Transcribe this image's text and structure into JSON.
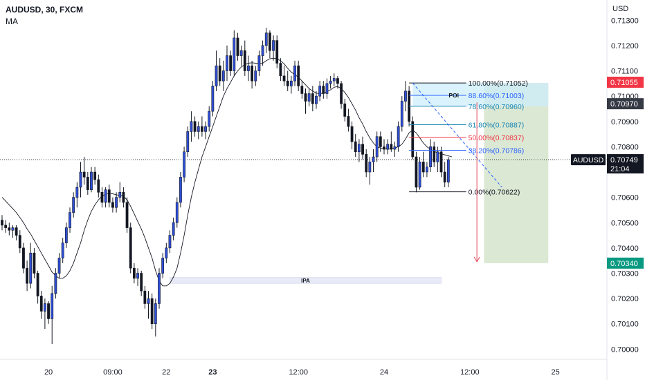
{
  "header": {
    "symbol_line": "AUDUSD, 30, FXCM",
    "indicator": "MA"
  },
  "colors": {
    "bull": "#2f4fd8",
    "bear": "#131722",
    "ma_line": "#131722",
    "price_label_red": "#f23645",
    "price_label_green": "#089981",
    "price_label_dark": "#363a45",
    "poi_fill": "#cdeefa",
    "ipa_fill": "#e8ebf7",
    "target_fill": "#dbe8d3",
    "fib_red": "#f23645",
    "fib_blue": "#2962ff",
    "arrow_red": "#e04a5b"
  },
  "chart_data": {
    "type": "candlestick",
    "symbol": "AUDUSD",
    "timeframe": "30",
    "ylim": [
      0.6996,
      0.7138
    ],
    "y_axis_unit": "USD",
    "y_ticks": [
      "0.71300",
      "0.71200",
      "0.71100",
      "0.71000",
      "0.70900",
      "0.70800",
      "0.70600",
      "0.70500",
      "0.70400",
      "0.70300",
      "0.70200",
      "0.70100",
      "0.70000"
    ],
    "x_ticks": [
      {
        "label": "20",
        "bar": 13,
        "bold": false
      },
      {
        "label": "09:00",
        "bar": 31,
        "bold": false
      },
      {
        "label": "22",
        "bar": 46,
        "bold": false
      },
      {
        "label": "23",
        "bar": 59,
        "bold": true
      },
      {
        "label": "12:00",
        "bar": 83,
        "bold": false
      },
      {
        "label": "24",
        "bar": 107,
        "bold": false
      },
      {
        "label": "12:00",
        "bar": 131,
        "bold": false
      },
      {
        "label": "25",
        "bar": 155,
        "bold": false
      }
    ],
    "bar_count_total": 170,
    "candles": [
      {
        "o": 0.7051,
        "h": 0.7053,
        "l": 0.7047,
        "c": 0.7049
      },
      {
        "o": 0.7049,
        "h": 0.7051,
        "l": 0.7046,
        "c": 0.7048
      },
      {
        "o": 0.7048,
        "h": 0.705,
        "l": 0.7045,
        "c": 0.7047
      },
      {
        "o": 0.7047,
        "h": 0.7049,
        "l": 0.7044,
        "c": 0.7048
      },
      {
        "o": 0.7048,
        "h": 0.7049,
        "l": 0.7043,
        "c": 0.7045
      },
      {
        "o": 0.7045,
        "h": 0.7047,
        "l": 0.7038,
        "c": 0.704
      },
      {
        "o": 0.704,
        "h": 0.7042,
        "l": 0.703,
        "c": 0.7032
      },
      {
        "o": 0.7032,
        "h": 0.7035,
        "l": 0.7023,
        "c": 0.7026
      },
      {
        "o": 0.7026,
        "h": 0.7042,
        "l": 0.7024,
        "c": 0.7038
      },
      {
        "o": 0.7038,
        "h": 0.704,
        "l": 0.7028,
        "c": 0.703
      },
      {
        "o": 0.703,
        "h": 0.7031,
        "l": 0.7018,
        "c": 0.7021
      },
      {
        "o": 0.7021,
        "h": 0.7023,
        "l": 0.7012,
        "c": 0.7015
      },
      {
        "o": 0.7015,
        "h": 0.702,
        "l": 0.7008,
        "c": 0.7018
      },
      {
        "o": 0.7018,
        "h": 0.7019,
        "l": 0.701,
        "c": 0.7012
      },
      {
        "o": 0.7012,
        "h": 0.7025,
        "l": 0.7002,
        "c": 0.7022
      },
      {
        "o": 0.7022,
        "h": 0.7032,
        "l": 0.702,
        "c": 0.703
      },
      {
        "o": 0.703,
        "h": 0.7038,
        "l": 0.7028,
        "c": 0.7036
      },
      {
        "o": 0.7036,
        "h": 0.7044,
        "l": 0.7034,
        "c": 0.7042
      },
      {
        "o": 0.7042,
        "h": 0.705,
        "l": 0.704,
        "c": 0.7048
      },
      {
        "o": 0.7048,
        "h": 0.7056,
        "l": 0.7046,
        "c": 0.7054
      },
      {
        "o": 0.7054,
        "h": 0.7062,
        "l": 0.7052,
        "c": 0.706
      },
      {
        "o": 0.706,
        "h": 0.7066,
        "l": 0.7056,
        "c": 0.7064
      },
      {
        "o": 0.7064,
        "h": 0.7074,
        "l": 0.706,
        "c": 0.707
      },
      {
        "o": 0.707,
        "h": 0.7076,
        "l": 0.7065,
        "c": 0.7068
      },
      {
        "o": 0.7068,
        "h": 0.707,
        "l": 0.7061,
        "c": 0.7063
      },
      {
        "o": 0.7063,
        "h": 0.7072,
        "l": 0.7062,
        "c": 0.707
      },
      {
        "o": 0.707,
        "h": 0.7072,
        "l": 0.7065,
        "c": 0.7067
      },
      {
        "o": 0.7067,
        "h": 0.7069,
        "l": 0.706,
        "c": 0.7062
      },
      {
        "o": 0.7062,
        "h": 0.7064,
        "l": 0.7056,
        "c": 0.7058
      },
      {
        "o": 0.7058,
        "h": 0.7064,
        "l": 0.7056,
        "c": 0.7063
      },
      {
        "o": 0.7063,
        "h": 0.7065,
        "l": 0.7056,
        "c": 0.7058
      },
      {
        "o": 0.7058,
        "h": 0.706,
        "l": 0.7054,
        "c": 0.7056
      },
      {
        "o": 0.7056,
        "h": 0.7062,
        "l": 0.7054,
        "c": 0.706
      },
      {
        "o": 0.706,
        "h": 0.7066,
        "l": 0.7058,
        "c": 0.7062
      },
      {
        "o": 0.7062,
        "h": 0.7064,
        "l": 0.7056,
        "c": 0.7058
      },
      {
        "o": 0.7058,
        "h": 0.706,
        "l": 0.7046,
        "c": 0.7048
      },
      {
        "o": 0.7048,
        "h": 0.705,
        "l": 0.703,
        "c": 0.7032
      },
      {
        "o": 0.7032,
        "h": 0.7034,
        "l": 0.7026,
        "c": 0.7028
      },
      {
        "o": 0.7028,
        "h": 0.7032,
        "l": 0.7025,
        "c": 0.703
      },
      {
        "o": 0.703,
        "h": 0.7031,
        "l": 0.7021,
        "c": 0.7023
      },
      {
        "o": 0.7023,
        "h": 0.7025,
        "l": 0.7016,
        "c": 0.7018
      },
      {
        "o": 0.7018,
        "h": 0.7023,
        "l": 0.7012,
        "c": 0.702
      },
      {
        "o": 0.702,
        "h": 0.7022,
        "l": 0.7008,
        "c": 0.701
      },
      {
        "o": 0.701,
        "h": 0.702,
        "l": 0.7005,
        "c": 0.7018
      },
      {
        "o": 0.7018,
        "h": 0.7032,
        "l": 0.7016,
        "c": 0.703
      },
      {
        "o": 0.703,
        "h": 0.7038,
        "l": 0.7028,
        "c": 0.7036
      },
      {
        "o": 0.7036,
        "h": 0.7042,
        "l": 0.7034,
        "c": 0.704
      },
      {
        "o": 0.704,
        "h": 0.7047,
        "l": 0.7038,
        "c": 0.7045
      },
      {
        "o": 0.7045,
        "h": 0.7052,
        "l": 0.7043,
        "c": 0.705
      },
      {
        "o": 0.705,
        "h": 0.706,
        "l": 0.7048,
        "c": 0.7058
      },
      {
        "o": 0.7058,
        "h": 0.707,
        "l": 0.7056,
        "c": 0.7068
      },
      {
        "o": 0.7068,
        "h": 0.708,
        "l": 0.7066,
        "c": 0.7078
      },
      {
        "o": 0.7078,
        "h": 0.7088,
        "l": 0.7076,
        "c": 0.7086
      },
      {
        "o": 0.7086,
        "h": 0.7094,
        "l": 0.7082,
        "c": 0.709
      },
      {
        "o": 0.709,
        "h": 0.7092,
        "l": 0.7084,
        "c": 0.7086
      },
      {
        "o": 0.7086,
        "h": 0.709,
        "l": 0.7083,
        "c": 0.7088
      },
      {
        "o": 0.7088,
        "h": 0.7092,
        "l": 0.7084,
        "c": 0.7086
      },
      {
        "o": 0.7086,
        "h": 0.709,
        "l": 0.7083,
        "c": 0.7088
      },
      {
        "o": 0.7088,
        "h": 0.7096,
        "l": 0.7086,
        "c": 0.7094
      },
      {
        "o": 0.7094,
        "h": 0.7106,
        "l": 0.7092,
        "c": 0.7104
      },
      {
        "o": 0.7104,
        "h": 0.7118,
        "l": 0.7102,
        "c": 0.7112
      },
      {
        "o": 0.7112,
        "h": 0.7115,
        "l": 0.7104,
        "c": 0.7106
      },
      {
        "o": 0.7106,
        "h": 0.7114,
        "l": 0.7102,
        "c": 0.711
      },
      {
        "o": 0.711,
        "h": 0.712,
        "l": 0.7106,
        "c": 0.7116
      },
      {
        "o": 0.7116,
        "h": 0.7118,
        "l": 0.7108,
        "c": 0.711
      },
      {
        "o": 0.711,
        "h": 0.7126,
        "l": 0.7108,
        "c": 0.7123
      },
      {
        "o": 0.7123,
        "h": 0.7125,
        "l": 0.7114,
        "c": 0.7116
      },
      {
        "o": 0.7116,
        "h": 0.712,
        "l": 0.7112,
        "c": 0.7118
      },
      {
        "o": 0.7118,
        "h": 0.7122,
        "l": 0.7108,
        "c": 0.711
      },
      {
        "o": 0.711,
        "h": 0.7116,
        "l": 0.7106,
        "c": 0.7112
      },
      {
        "o": 0.7112,
        "h": 0.7114,
        "l": 0.7103,
        "c": 0.7106
      },
      {
        "o": 0.7106,
        "h": 0.7112,
        "l": 0.7104,
        "c": 0.711
      },
      {
        "o": 0.711,
        "h": 0.7118,
        "l": 0.7108,
        "c": 0.7116
      },
      {
        "o": 0.7116,
        "h": 0.7122,
        "l": 0.7112,
        "c": 0.712
      },
      {
        "o": 0.712,
        "h": 0.7127,
        "l": 0.7117,
        "c": 0.7125
      },
      {
        "o": 0.7125,
        "h": 0.7126,
        "l": 0.7115,
        "c": 0.7118
      },
      {
        "o": 0.7118,
        "h": 0.7124,
        "l": 0.7114,
        "c": 0.7122
      },
      {
        "o": 0.7122,
        "h": 0.7124,
        "l": 0.7111,
        "c": 0.7113
      },
      {
        "o": 0.7113,
        "h": 0.7115,
        "l": 0.7106,
        "c": 0.7108
      },
      {
        "o": 0.7108,
        "h": 0.7112,
        "l": 0.7104,
        "c": 0.7106
      },
      {
        "o": 0.7106,
        "h": 0.711,
        "l": 0.7102,
        "c": 0.7104
      },
      {
        "o": 0.7104,
        "h": 0.7108,
        "l": 0.7101,
        "c": 0.7106
      },
      {
        "o": 0.7106,
        "h": 0.7114,
        "l": 0.7104,
        "c": 0.7112
      },
      {
        "o": 0.7112,
        "h": 0.7114,
        "l": 0.7102,
        "c": 0.7104
      },
      {
        "o": 0.7104,
        "h": 0.7106,
        "l": 0.7099,
        "c": 0.7101
      },
      {
        "o": 0.7101,
        "h": 0.7103,
        "l": 0.7093,
        "c": 0.7098
      },
      {
        "o": 0.7098,
        "h": 0.7103,
        "l": 0.7096,
        "c": 0.7101
      },
      {
        "o": 0.7101,
        "h": 0.7104,
        "l": 0.7094,
        "c": 0.7097
      },
      {
        "o": 0.7097,
        "h": 0.7102,
        "l": 0.7095,
        "c": 0.71
      },
      {
        "o": 0.71,
        "h": 0.7106,
        "l": 0.7098,
        "c": 0.7104
      },
      {
        "o": 0.7104,
        "h": 0.7106,
        "l": 0.7099,
        "c": 0.7101
      },
      {
        "o": 0.7101,
        "h": 0.7107,
        "l": 0.7099,
        "c": 0.7105
      },
      {
        "o": 0.7105,
        "h": 0.7108,
        "l": 0.7103,
        "c": 0.7106
      },
      {
        "o": 0.7106,
        "h": 0.7109,
        "l": 0.7104,
        "c": 0.7107
      },
      {
        "o": 0.7107,
        "h": 0.7108,
        "l": 0.7103,
        "c": 0.7105
      },
      {
        "o": 0.7105,
        "h": 0.7106,
        "l": 0.7095,
        "c": 0.7097
      },
      {
        "o": 0.7097,
        "h": 0.7099,
        "l": 0.709,
        "c": 0.7092
      },
      {
        "o": 0.7092,
        "h": 0.7095,
        "l": 0.7086,
        "c": 0.7088
      },
      {
        "o": 0.7088,
        "h": 0.709,
        "l": 0.7079,
        "c": 0.7082
      },
      {
        "o": 0.7082,
        "h": 0.7085,
        "l": 0.7076,
        "c": 0.7078
      },
      {
        "o": 0.7078,
        "h": 0.7083,
        "l": 0.7074,
        "c": 0.7081
      },
      {
        "o": 0.7081,
        "h": 0.7084,
        "l": 0.7075,
        "c": 0.7077
      },
      {
        "o": 0.7077,
        "h": 0.7079,
        "l": 0.7068,
        "c": 0.707
      },
      {
        "o": 0.707,
        "h": 0.7076,
        "l": 0.7065,
        "c": 0.7074
      },
      {
        "o": 0.7074,
        "h": 0.7079,
        "l": 0.707,
        "c": 0.7076
      },
      {
        "o": 0.7076,
        "h": 0.7086,
        "l": 0.7074,
        "c": 0.7084
      },
      {
        "o": 0.7084,
        "h": 0.7086,
        "l": 0.7078,
        "c": 0.708
      },
      {
        "o": 0.708,
        "h": 0.7083,
        "l": 0.7077,
        "c": 0.7079
      },
      {
        "o": 0.7079,
        "h": 0.7083,
        "l": 0.7077,
        "c": 0.7081
      },
      {
        "o": 0.7081,
        "h": 0.7086,
        "l": 0.7078,
        "c": 0.7079
      },
      {
        "o": 0.7079,
        "h": 0.7082,
        "l": 0.7076,
        "c": 0.708
      },
      {
        "o": 0.708,
        "h": 0.709,
        "l": 0.7078,
        "c": 0.7088
      },
      {
        "o": 0.7088,
        "h": 0.71,
        "l": 0.7086,
        "c": 0.7098
      },
      {
        "o": 0.7098,
        "h": 0.7106,
        "l": 0.7094,
        "c": 0.7102
      },
      {
        "o": 0.7102,
        "h": 0.7104,
        "l": 0.7088,
        "c": 0.709
      },
      {
        "o": 0.709,
        "h": 0.7092,
        "l": 0.7075,
        "c": 0.7076
      },
      {
        "o": 0.7076,
        "h": 0.7078,
        "l": 0.7062,
        "c": 0.7064
      },
      {
        "o": 0.7064,
        "h": 0.7076,
        "l": 0.7063,
        "c": 0.7074
      },
      {
        "o": 0.7074,
        "h": 0.7078,
        "l": 0.7068,
        "c": 0.707
      },
      {
        "o": 0.707,
        "h": 0.7074,
        "l": 0.7068,
        "c": 0.7072
      },
      {
        "o": 0.7072,
        "h": 0.7083,
        "l": 0.707,
        "c": 0.708
      },
      {
        "o": 0.708,
        "h": 0.7082,
        "l": 0.7072,
        "c": 0.7074
      },
      {
        "o": 0.7074,
        "h": 0.708,
        "l": 0.707,
        "c": 0.7078
      },
      {
        "o": 0.7078,
        "h": 0.708,
        "l": 0.7068,
        "c": 0.707
      },
      {
        "o": 0.707,
        "h": 0.7074,
        "l": 0.7064,
        "c": 0.7066
      },
      {
        "o": 0.7066,
        "h": 0.7076,
        "l": 0.7064,
        "c": 0.70749
      }
    ],
    "moving_average": [
      0.706,
      0.70585,
      0.7057,
      0.70555,
      0.7054,
      0.7052,
      0.705,
      0.70475,
      0.70455,
      0.7043,
      0.70405,
      0.7038,
      0.70355,
      0.7033,
      0.70305,
      0.7029,
      0.7028,
      0.7028,
      0.7029,
      0.7031,
      0.7034,
      0.7038,
      0.7042,
      0.7047,
      0.7051,
      0.70545,
      0.7057,
      0.7059,
      0.70605,
      0.70612,
      0.70615,
      0.70614,
      0.7061,
      0.70608,
      0.70604,
      0.7059,
      0.70565,
      0.70535,
      0.70505,
      0.70475,
      0.7044,
      0.704,
      0.7036,
      0.7031,
      0.7027,
      0.7025,
      0.7025,
      0.7026,
      0.70285,
      0.7032,
      0.7038,
      0.7045,
      0.7053,
      0.706,
      0.7066,
      0.7071,
      0.7076,
      0.708,
      0.7084,
      0.7088,
      0.7092,
      0.7096,
      0.71,
      0.7103,
      0.71055,
      0.7108,
      0.711,
      0.71115,
      0.71125,
      0.7113,
      0.71132,
      0.7113,
      0.71128,
      0.7113,
      0.7114,
      0.71148,
      0.7115,
      0.71148,
      0.7114,
      0.71128,
      0.7111,
      0.71095,
      0.71085,
      0.71075,
      0.7106,
      0.71045,
      0.7103,
      0.7102,
      0.71012,
      0.7101,
      0.71012,
      0.71018,
      0.71025,
      0.71035,
      0.71038,
      0.7103,
      0.71015,
      0.70995,
      0.7097,
      0.70945,
      0.70915,
      0.7089,
      0.7086,
      0.70835,
      0.70815,
      0.708,
      0.70795,
      0.70792,
      0.7079,
      0.70792,
      0.70795,
      0.708,
      0.7081,
      0.7083,
      0.70855,
      0.70865,
      0.70855,
      0.70835,
      0.70815,
      0.708,
      0.7079,
      0.70782,
      0.70776,
      0.70772,
      0.70768,
      0.70764,
      0.7076
    ],
    "fibonacci": {
      "start_bar": 114,
      "end_bar": 121,
      "label_bar": 130,
      "levels": [
        {
          "ratio": "100.00%",
          "price": 0.71052,
          "label": "100.00%(0.71052)",
          "color": "#131722"
        },
        {
          "ratio": "88.60%",
          "price": 0.71003,
          "label": "88.60%(0.71003)",
          "color": "#2962ff"
        },
        {
          "ratio": "78.60%",
          "price": 0.7096,
          "label": "78.60%(0.70960)",
          "color": "#1e88b5"
        },
        {
          "ratio": "61.80%",
          "price": 0.70887,
          "label": "61.80%(0.70887)",
          "color": "#1e88b5"
        },
        {
          "ratio": "50.00%",
          "price": 0.70837,
          "label": "50.00%(0.70837)",
          "color": "#f23645"
        },
        {
          "ratio": "38.20%",
          "price": 0.70786,
          "label": "38.20%(0.70786)",
          "color": "#2962ff"
        },
        {
          "ratio": "0.00%",
          "price": 0.70622,
          "label": "0.00%(0.70622)",
          "color": "#131722"
        }
      ]
    },
    "poi_zone": {
      "label": "POI",
      "top": 0.71052,
      "bottom": 0.7096,
      "start_bar": 115,
      "end_bar": 153
    },
    "ipa_zone": {
      "label": "IPA",
      "top": 0.70283,
      "bottom": 0.7026,
      "start_bar": 47,
      "end_bar": 123
    },
    "target_zone": {
      "top": 0.71052,
      "bottom": 0.7034,
      "start_bar": 135,
      "end_bar": 153
    },
    "projection_arrow": {
      "start_bar": 133,
      "start_price": 0.70975,
      "end_bar": 133,
      "end_price": 0.70345
    },
    "projection_dash": {
      "start_bar": 115,
      "start_price": 0.71052,
      "end_bar": 140,
      "end_price": 0.7064
    },
    "current_price_line": 0.70749
  },
  "price_labels": [
    {
      "text": "0.71055",
      "price": 0.71055,
      "style": "red"
    },
    {
      "text": "0.70970",
      "price": 0.7097,
      "style": "dark"
    },
    {
      "text": "0.70749",
      "price": 0.70749,
      "style": "black",
      "sub": "21:04"
    },
    {
      "text": "0.70340",
      "price": 0.7034,
      "style": "green"
    }
  ],
  "symbol_badge": "AUDUSD"
}
